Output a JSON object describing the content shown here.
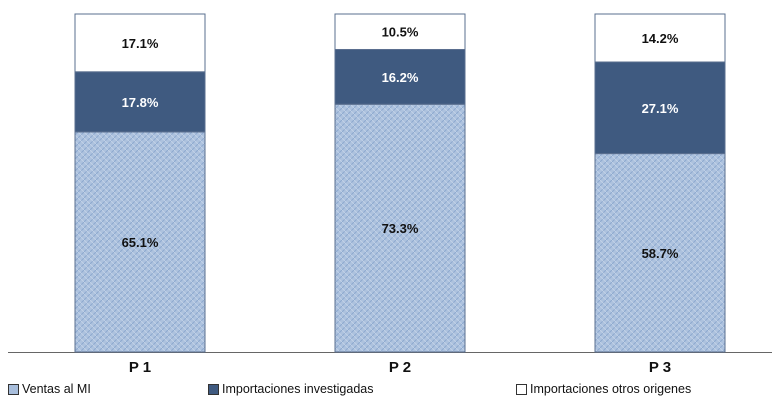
{
  "chart_data": {
    "type": "bar",
    "stacked": true,
    "categories": [
      "P 1",
      "P 2",
      "P 3"
    ],
    "series": [
      {
        "name": "Ventas al MI",
        "values": [
          65.1,
          73.3,
          58.7
        ],
        "labels": [
          "65.1%",
          "73.3%",
          "58.7%"
        ],
        "color": "#a8bedc",
        "label_color": "#111111"
      },
      {
        "name": "Importaciones investigadas",
        "values": [
          17.8,
          16.2,
          27.1
        ],
        "labels": [
          "17.8%",
          "16.2%",
          "27.1%"
        ],
        "color": "#3f5a80",
        "label_color": "#ffffff"
      },
      {
        "name": "Importaciones otros origenes",
        "values": [
          17.1,
          10.5,
          14.2
        ],
        "labels": [
          "17.1%",
          "10.5%",
          "14.2%"
        ],
        "color": "#ffffff",
        "label_color": "#111111"
      }
    ],
    "ylim": [
      0,
      100
    ],
    "grid": false,
    "legend_position": "bottom"
  }
}
